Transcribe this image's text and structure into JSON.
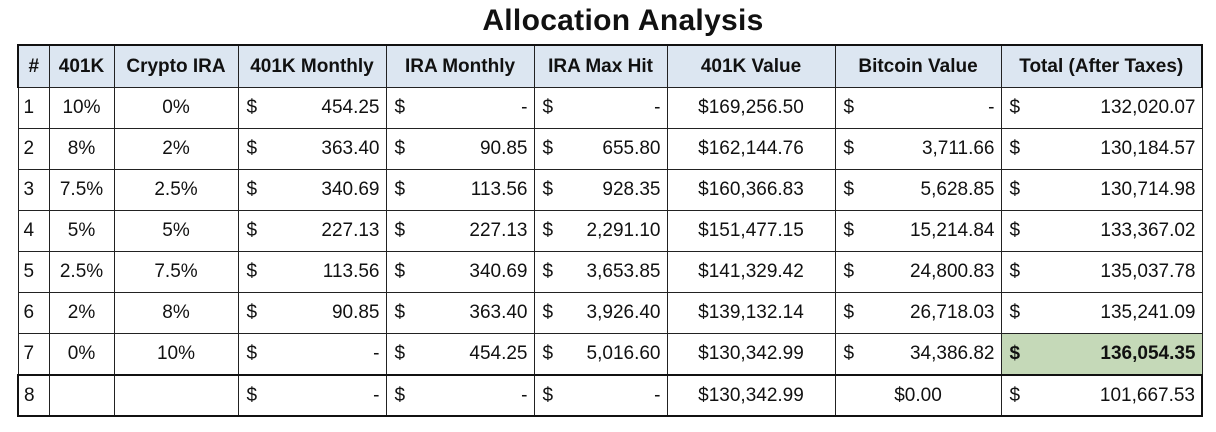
{
  "title": "Allocation Analysis",
  "headers": [
    "#",
    "401K",
    "Crypto IRA",
    "401K Monthly",
    "IRA Monthly",
    "IRA Max Hit",
    "401K Value",
    "Bitcoin Value",
    "Total (After Taxes)"
  ],
  "highlight_color": "#c5d9b8",
  "header_color": "#dce6f1",
  "rows": [
    {
      "n": "1",
      "k401": "10%",
      "crypto": "0%",
      "k_monthly": {
        "sym": "$",
        "amt": "454.25"
      },
      "ira_monthly": {
        "sym": "$",
        "amt": "-"
      },
      "ira_max": {
        "sym": "$",
        "amt": "-"
      },
      "k_value": "$169,256.50",
      "btc": {
        "sym": "$",
        "amt": "-"
      },
      "total": {
        "sym": "$",
        "amt": "132,020.07"
      }
    },
    {
      "n": "2",
      "k401": "8%",
      "crypto": "2%",
      "k_monthly": {
        "sym": "$",
        "amt": "363.40"
      },
      "ira_monthly": {
        "sym": "$",
        "amt": "90.85"
      },
      "ira_max": {
        "sym": "$",
        "amt": "655.80"
      },
      "k_value": "$162,144.76",
      "btc": {
        "sym": "$",
        "amt": "3,711.66"
      },
      "total": {
        "sym": "$",
        "amt": "130,184.57"
      }
    },
    {
      "n": "3",
      "k401": "7.5%",
      "crypto": "2.5%",
      "k_monthly": {
        "sym": "$",
        "amt": "340.69"
      },
      "ira_monthly": {
        "sym": "$",
        "amt": "113.56"
      },
      "ira_max": {
        "sym": "$",
        "amt": "928.35"
      },
      "k_value": "$160,366.83",
      "btc": {
        "sym": "$",
        "amt": "5,628.85"
      },
      "total": {
        "sym": "$",
        "amt": "130,714.98"
      }
    },
    {
      "n": "4",
      "k401": "5%",
      "crypto": "5%",
      "k_monthly": {
        "sym": "$",
        "amt": "227.13"
      },
      "ira_monthly": {
        "sym": "$",
        "amt": "227.13"
      },
      "ira_max": {
        "sym": "$",
        "amt": "2,291.10"
      },
      "k_value": "$151,477.15",
      "btc": {
        "sym": "$",
        "amt": "15,214.84"
      },
      "total": {
        "sym": "$",
        "amt": "133,367.02"
      }
    },
    {
      "n": "5",
      "k401": "2.5%",
      "crypto": "7.5%",
      "k_monthly": {
        "sym": "$",
        "amt": "113.56"
      },
      "ira_monthly": {
        "sym": "$",
        "amt": "340.69"
      },
      "ira_max": {
        "sym": "$",
        "amt": "3,653.85"
      },
      "k_value": "$141,329.42",
      "btc": {
        "sym": "$",
        "amt": "24,800.83"
      },
      "total": {
        "sym": "$",
        "amt": "135,037.78"
      }
    },
    {
      "n": "6",
      "k401": "2%",
      "crypto": "8%",
      "k_monthly": {
        "sym": "$",
        "amt": "90.85"
      },
      "ira_monthly": {
        "sym": "$",
        "amt": "363.40"
      },
      "ira_max": {
        "sym": "$",
        "amt": "3,926.40"
      },
      "k_value": "$139,132.14",
      "btc": {
        "sym": "$",
        "amt": "26,718.03"
      },
      "total": {
        "sym": "$",
        "amt": "135,241.09"
      }
    },
    {
      "n": "7",
      "k401": "0%",
      "crypto": "10%",
      "k_monthly": {
        "sym": "$",
        "amt": "-"
      },
      "ira_monthly": {
        "sym": "$",
        "amt": "454.25"
      },
      "ira_max": {
        "sym": "$",
        "amt": "5,016.60"
      },
      "k_value": "$130,342.99",
      "btc": {
        "sym": "$",
        "amt": "34,386.82"
      },
      "total": {
        "sym": "$",
        "amt": "136,054.35"
      }
    },
    {
      "n": "8",
      "k401": "",
      "crypto": "",
      "k_monthly": {
        "sym": "$",
        "amt": "-"
      },
      "ira_monthly": {
        "sym": "$",
        "amt": "-"
      },
      "ira_max": {
        "sym": "$",
        "amt": "-"
      },
      "k_value": "$130,342.99",
      "btc_plain": "$0.00",
      "total": {
        "sym": "$",
        "amt": "101,667.53"
      }
    }
  ]
}
